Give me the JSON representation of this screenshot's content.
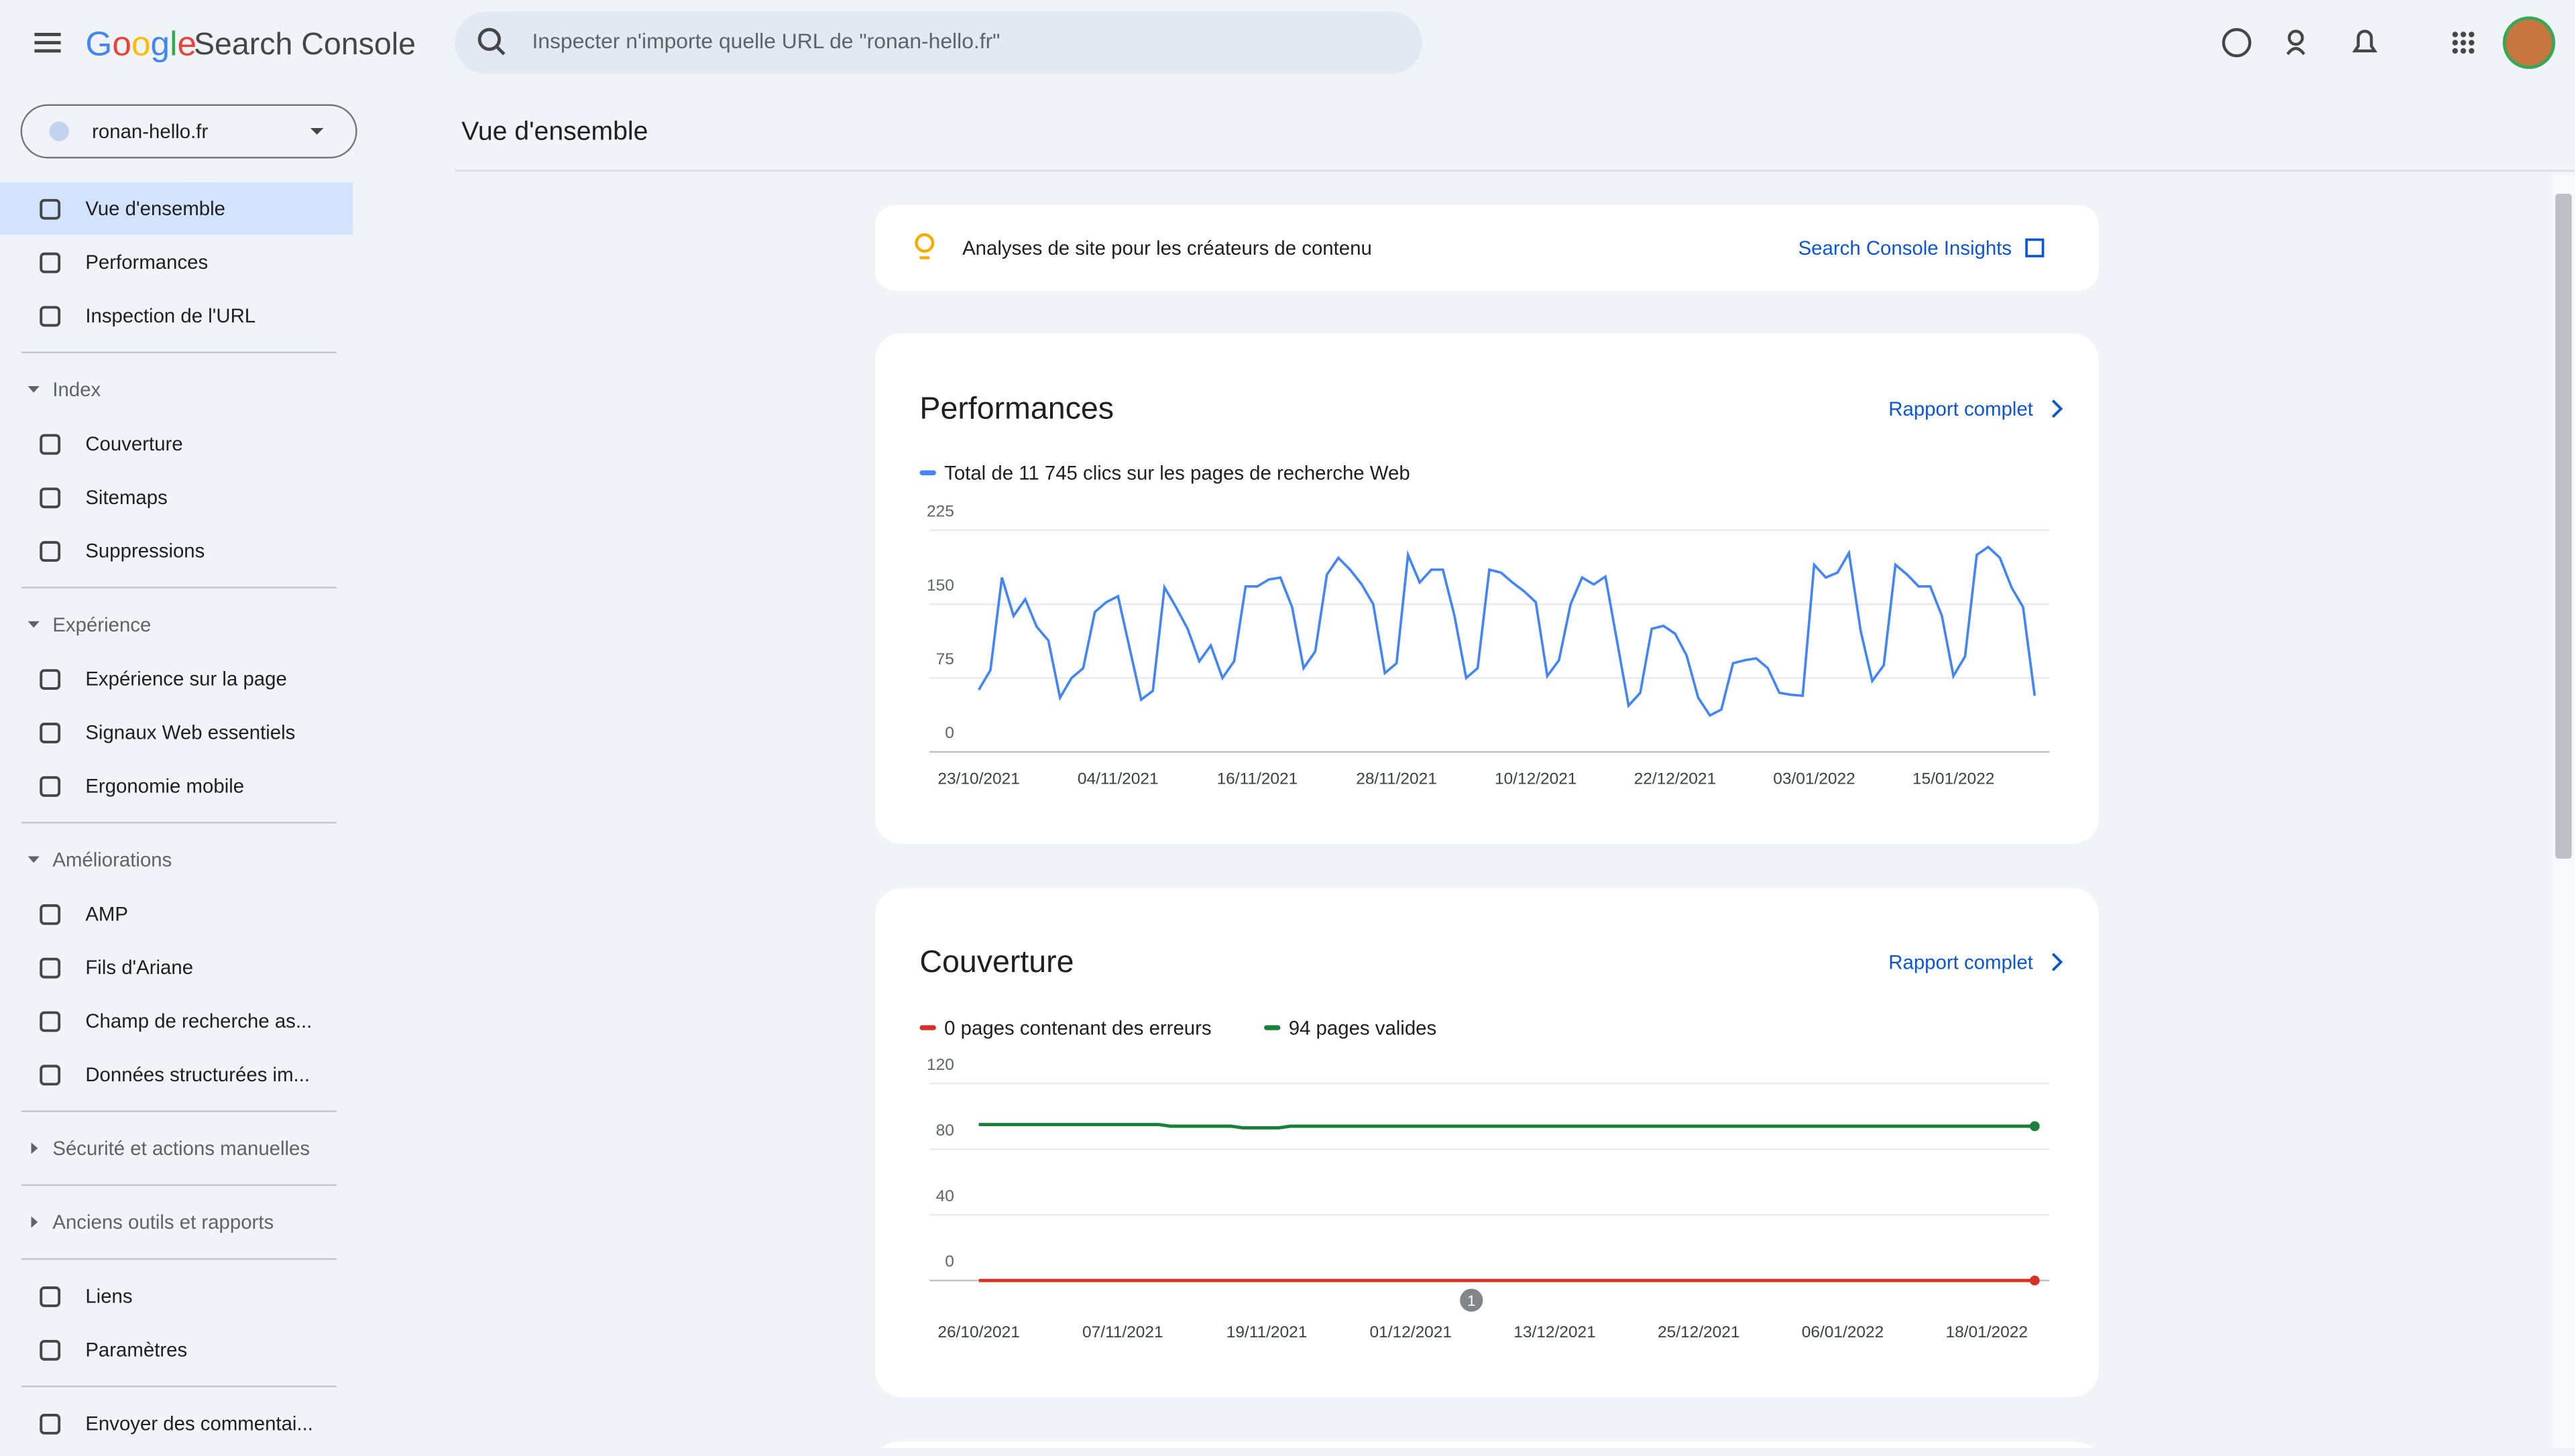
{
  "header": {
    "logo": "Google",
    "product": "Search Console",
    "search_placeholder": "Inspecter n'importe quelle URL de \"ronan-hello.fr\""
  },
  "property": "ronan-hello.fr",
  "page_title": "Vue d'ensemble",
  "nav": [
    {
      "items": [
        "Vue d'ensemble",
        "Performances",
        "Inspection de l'URL"
      ]
    },
    {
      "title": "Index",
      "items": [
        "Couverture",
        "Sitemaps",
        "Suppressions"
      ]
    },
    {
      "title": "Expérience",
      "items": [
        "Expérience sur la page",
        "Signaux Web essentiels",
        "Ergonomie mobile"
      ]
    },
    {
      "title": "Améliorations",
      "items": [
        "AMP",
        "Fils d'Ariane",
        "Champ de recherche as...",
        "Données structurées im..."
      ]
    },
    {
      "title": "Sécurité et actions manuelles",
      "items": []
    },
    {
      "title": "Anciens outils et rapports",
      "items": []
    },
    {
      "items": [
        "Liens",
        "Paramètres"
      ]
    },
    {
      "items": [
        "Envoyer des commentai..."
      ]
    }
  ],
  "insights_banner": {
    "text": "Analyses de site pour les créateurs de contenu",
    "link": "Search Console Insights"
  },
  "cards": [
    {
      "title": "Performances",
      "link": "Rapport complet"
    },
    {
      "title": "Couverture",
      "link": "Rapport complet"
    }
  ],
  "chart_data": [
    {
      "type": "line",
      "categories": [
        "23/10/2021",
        null,
        null,
        null,
        null,
        null,
        null,
        null,
        null,
        null,
        null,
        null,
        "04/11/2021",
        null,
        null,
        null,
        null,
        null,
        null,
        null,
        null,
        null,
        null,
        null,
        "16/11/2021",
        null,
        null,
        null,
        null,
        null,
        null,
        null,
        null,
        null,
        null,
        null,
        "28/11/2021",
        null,
        null,
        null,
        null,
        null,
        null,
        null,
        null,
        null,
        null,
        null,
        "10/12/2021",
        null,
        null,
        null,
        null,
        null,
        null,
        null,
        null,
        null,
        null,
        null,
        "22/12/2021",
        null,
        null,
        null,
        null,
        null,
        null,
        null,
        null,
        null,
        null,
        null,
        "03/01/2022",
        null,
        null,
        null,
        null,
        null,
        null,
        null,
        null,
        null,
        null,
        null,
        "15/01/2022",
        null,
        null,
        null,
        null,
        null,
        null,
        null
      ],
      "series": [
        {
          "name": "Total de 11 745 clics sur les pages de recherche Web",
          "color": "#4285f4",
          "values": [
            63,
            83,
            177,
            138,
            155,
            127,
            113,
            55,
            75,
            85,
            142,
            152,
            158,
            105,
            53,
            62,
            167,
            147,
            125,
            92,
            108,
            75,
            92,
            168,
            168,
            175,
            177,
            147,
            85,
            102,
            180,
            197,
            185,
            170,
            150,
            80,
            90,
            200,
            172,
            185,
            185,
            138,
            75,
            85,
            185,
            182,
            172,
            163,
            152,
            77,
            93,
            150,
            177,
            170,
            178,
            113,
            47,
            60,
            125,
            128,
            120,
            98,
            55,
            37,
            43,
            90,
            93,
            95,
            85,
            60,
            58,
            57,
            190,
            177,
            182,
            202,
            123,
            72,
            88,
            190,
            180,
            168,
            168,
            138,
            77,
            97,
            200,
            208,
            197,
            167,
            147,
            57
          ]
        }
      ],
      "ylim": [
        0,
        225
      ],
      "yticks": [
        0,
        75,
        150,
        225
      ],
      "grid": true
    },
    {
      "type": "line",
      "categories": [
        "26/10/2021",
        null,
        null,
        null,
        null,
        null,
        null,
        null,
        null,
        null,
        null,
        null,
        "07/11/2021",
        null,
        null,
        null,
        null,
        null,
        null,
        null,
        null,
        null,
        null,
        null,
        "19/11/2021",
        null,
        null,
        null,
        null,
        null,
        null,
        null,
        null,
        null,
        null,
        null,
        "01/12/2021",
        null,
        null,
        null,
        null,
        null,
        null,
        null,
        null,
        null,
        null,
        null,
        "13/12/2021",
        null,
        null,
        null,
        null,
        null,
        null,
        null,
        null,
        null,
        null,
        null,
        "25/12/2021",
        null,
        null,
        null,
        null,
        null,
        null,
        null,
        null,
        null,
        null,
        null,
        "06/01/2022",
        null,
        null,
        null,
        null,
        null,
        null,
        null,
        null,
        null,
        null,
        null,
        "18/01/2022",
        null,
        null,
        null,
        null
      ],
      "series": [
        {
          "name": "0 pages contenant des erreurs",
          "color": "#d93025",
          "values": [
            0,
            0,
            0,
            0,
            0,
            0,
            0,
            0,
            0,
            0,
            0,
            0,
            0,
            0,
            0,
            0,
            0,
            0,
            0,
            0,
            0,
            0,
            0,
            0,
            0,
            0,
            0,
            0,
            0,
            0,
            0,
            0,
            0,
            0,
            0,
            0,
            0,
            0,
            0,
            0,
            0,
            0,
            0,
            0,
            0,
            0,
            0,
            0,
            0,
            0,
            0,
            0,
            0,
            0,
            0,
            0,
            0,
            0,
            0,
            0,
            0,
            0,
            0,
            0,
            0,
            0,
            0,
            0,
            0,
            0,
            0,
            0,
            0,
            0,
            0,
            0,
            0,
            0,
            0,
            0,
            0,
            0,
            0,
            0,
            0,
            0,
            0,
            0,
            0
          ]
        },
        {
          "name": "94 pages valides",
          "color": "#188038",
          "values": [
            95,
            95,
            95,
            95,
            95,
            95,
            95,
            95,
            95,
            95,
            95,
            95,
            95,
            95,
            95,
            95,
            94,
            94,
            94,
            94,
            94,
            94,
            93,
            93,
            93,
            93,
            94,
            94,
            94,
            94,
            94,
            94,
            94,
            94,
            94,
            94,
            94,
            94,
            94,
            94,
            94,
            94,
            94,
            94,
            94,
            94,
            94,
            94,
            94,
            94,
            94,
            94,
            94,
            94,
            94,
            94,
            94,
            94,
            94,
            94,
            94,
            94,
            94,
            94,
            94,
            94,
            94,
            94,
            94,
            94,
            94,
            94,
            94,
            94,
            94,
            94,
            94,
            94,
            94,
            94,
            94,
            94,
            94,
            94,
            94,
            94,
            94,
            94,
            94
          ]
        }
      ],
      "ylim": [
        0,
        120
      ],
      "yticks": [
        0,
        40,
        80,
        120
      ],
      "grid": true,
      "annotations": [
        "1"
      ]
    }
  ]
}
